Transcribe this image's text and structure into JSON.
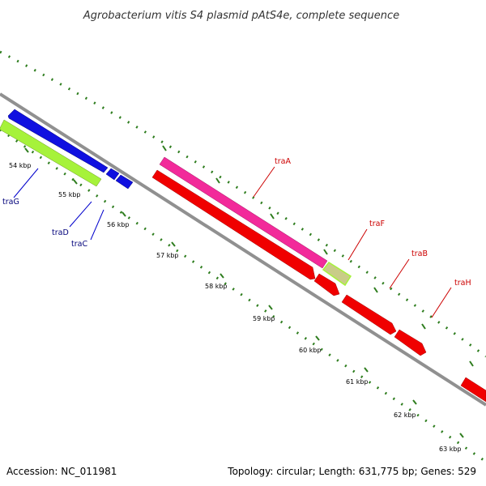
{
  "title": "Agrobacterium vitis S4 plasmid pAtS4e, complete sequence",
  "footer": {
    "accession": "Accession: NC_011981",
    "summary": "Topology: circular; Length: 631,775 bp; Genes: 529"
  },
  "ticks": [
    "54 kbp",
    "55 kbp",
    "56 kbp",
    "57 kbp",
    "58 kbp",
    "59 kbp",
    "60 kbp",
    "61 kbp",
    "62 kbp",
    "63 kbp"
  ],
  "genes": [
    {
      "name": "traG",
      "color": "#00007a"
    },
    {
      "name": "traD",
      "color": "#00007a"
    },
    {
      "name": "traC",
      "color": "#00007a"
    },
    {
      "name": "traA",
      "color": "#cc0000"
    },
    {
      "name": "traF",
      "color": "#cc0000"
    },
    {
      "name": "traB",
      "color": "#cc0000"
    },
    {
      "name": "traH",
      "color": "#cc0000"
    }
  ],
  "colors": {
    "backbone": "#909090",
    "ticks": "#2e7d1e",
    "blue_feature": "#1010e0",
    "green_feature": "#a6f23a",
    "pink_feature": "#f22a9a",
    "red_feature": "#f00000",
    "olive_feature": "#c9cc88"
  }
}
